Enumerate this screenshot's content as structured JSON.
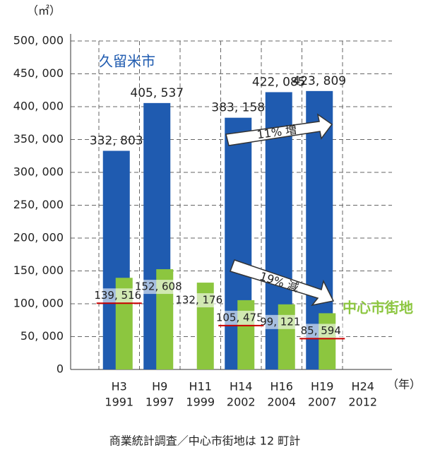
{
  "chart_data": {
    "type": "bar",
    "unit_label": "（㎡）",
    "x_unit_label": "（年）",
    "footnote": "商業統計調査／中心市街地は 12 町計",
    "categories": [
      "H3",
      "H9",
      "H11",
      "H14",
      "H16",
      "H19",
      "H24"
    ],
    "category_years": [
      "1991",
      "1997",
      "1999",
      "2002",
      "2004",
      "2007",
      "2012"
    ],
    "series": [
      {
        "name": "久留米市",
        "color": "#1f5bb0",
        "values": [
          332803,
          405537,
          null,
          383158,
          422085,
          423809,
          null
        ],
        "value_labels": [
          "332, 803",
          "405, 537",
          null,
          "383, 158",
          "422, 085",
          "423, 809",
          null
        ]
      },
      {
        "name": "中心市街地",
        "color": "#8cc63f",
        "values": [
          139516,
          152608,
          132176,
          105475,
          99121,
          85594,
          null
        ],
        "value_labels": [
          "139, 516",
          "152, 608",
          "132, 176",
          "105, 475",
          "99, 121",
          "85, 594",
          null
        ]
      }
    ],
    "annotations": [
      "11% 増",
      "19% 減"
    ],
    "ylim": [
      0,
      500000
    ],
    "yticks": [
      0,
      {
        "value": 50000,
        "label": "50, 000"
      },
      {
        "value": 100000,
        "label": "100, 000"
      },
      {
        "value": 150000,
        "label": "150, 000"
      },
      {
        "value": 200000,
        "label": "200, 000"
      },
      {
        "value": 250000,
        "label": "250, 000"
      },
      {
        "value": 300000,
        "label": "300, 000"
      },
      {
        "value": 350000,
        "label": "350, 000"
      },
      {
        "value": 400000,
        "label": "400, 000"
      },
      {
        "value": 450000,
        "label": "450, 000"
      },
      {
        "value": 500000,
        "label": "500, 000"
      }
    ],
    "grid": true
  }
}
